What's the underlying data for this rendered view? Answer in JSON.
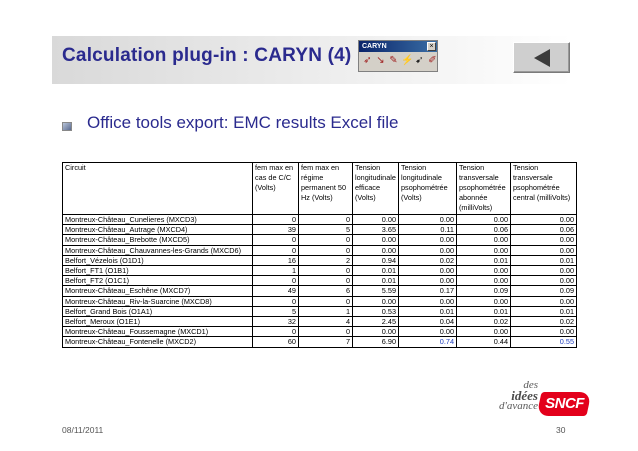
{
  "slide": {
    "title": "Calculation plug-in : CARYN (4)",
    "bullet": "Office tools export: EMC results Excel file"
  },
  "toolbar": {
    "title": "CARYN",
    "close_glyph": "×",
    "icons": [
      "tool-icon-1",
      "tool-icon-2",
      "tool-icon-3",
      "tool-icon-4",
      "tool-icon-5",
      "tool-icon-6"
    ]
  },
  "nav": {
    "prev_icon": "triangle-left-icon"
  },
  "table": {
    "headers": [
      "Circuit",
      "fem max en cas de C/C (Volts)",
      "fem max en régime permanent 50 Hz (Volts)",
      "Tension longitudinale efficace (Volts)",
      "Tension longitudinale psophométrée (Volts)",
      "Tension transversale psophométrée abonnée (milliVolts)",
      "Tension transversale psophométrée central (milliVolts)"
    ],
    "rows": [
      [
        "Montreux-Château_Cunelieres (MXCD3)",
        "0",
        "0",
        "0.00",
        "0.00",
        "0.00",
        "0.00"
      ],
      [
        "Montreux-Château_Autrage (MXCD4)",
        "39",
        "5",
        "3.65",
        "0.11",
        "0.06",
        "0.06"
      ],
      [
        "Montreux-Château_Brebotte (MXCD5)",
        "0",
        "0",
        "0.00",
        "0.00",
        "0.00",
        "0.00"
      ],
      [
        "Montreux-Château_Chauvannes-les-Grands (MXCD6)",
        "0",
        "0",
        "0.00",
        "0.00",
        "0.00",
        "0.00"
      ],
      [
        "Belfort_Vézelois (O1D1)",
        "16",
        "2",
        "0.94",
        "0.02",
        "0.01",
        "0.01"
      ],
      [
        "Belfort_FT1 (O1B1)",
        "1",
        "0",
        "0.01",
        "0.00",
        "0.00",
        "0.00"
      ],
      [
        "Belfort_FT2 (O1C1)",
        "0",
        "0",
        "0.01",
        "0.00",
        "0.00",
        "0.00"
      ],
      [
        "Montreux-Château_Eschêne (MXCD7)",
        "49",
        "6",
        "5.59",
        "0.17",
        "0.09",
        "0.09"
      ],
      [
        "Montreux-Château_Riv-la-Suarcine (MXCD8)",
        "0",
        "0",
        "0.00",
        "0.00",
        "0.00",
        "0.00"
      ],
      [
        "Belfort_Grand Bois (O1A1)",
        "5",
        "1",
        "0.53",
        "0.01",
        "0.01",
        "0.01"
      ],
      [
        "Belfort_Meroux (O1E1)",
        "32",
        "4",
        "2.45",
        "0.04",
        "0.02",
        "0.02"
      ],
      [
        "Montreux-Château_Foussemagne (MXCD1)",
        "0",
        "0",
        "0.00",
        "0.00",
        "0.00",
        "0.00"
      ],
      [
        "Montreux-Château_Fontenelle (MXCD2)",
        "60",
        "7",
        "6.90",
        "0.74",
        "0.44",
        "0.55"
      ]
    ],
    "highlight_color": "#1f3fbf"
  },
  "footer": {
    "date": "08/11/2011",
    "page": "30",
    "tagline_1": "des",
    "tagline_2": "idées",
    "tagline_3": "d'avance",
    "logo": "SNCF"
  },
  "colors": {
    "title": "#2a2a8e",
    "logo": "#e3001b"
  }
}
